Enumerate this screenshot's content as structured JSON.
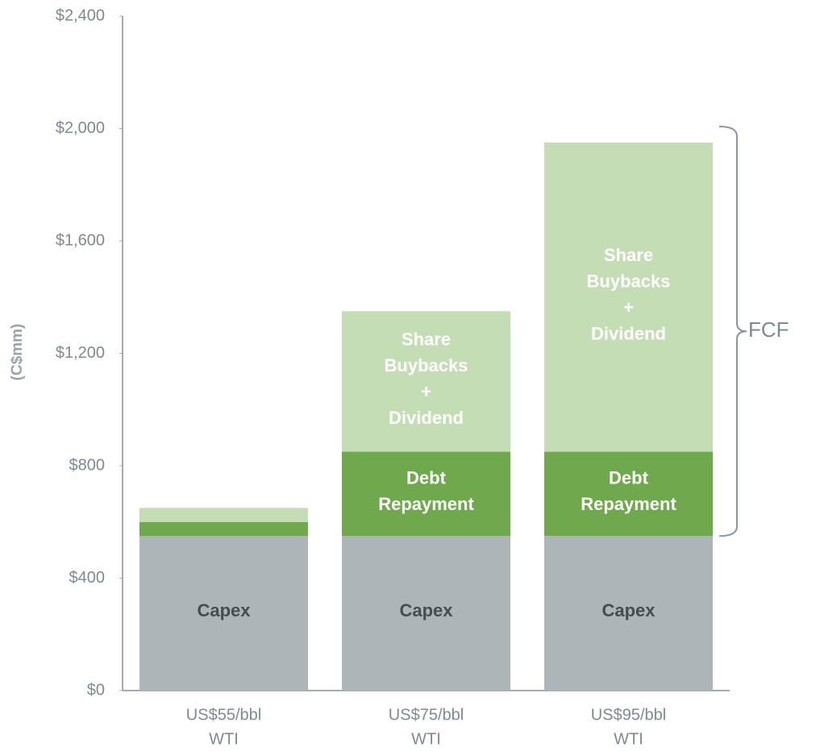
{
  "chart_data": {
    "type": "stacked_bar",
    "ylabel": "(C$mm)",
    "categories": [
      [
        "US$55/bbl",
        "WTI"
      ],
      [
        "US$75/bbl",
        "WTI"
      ],
      [
        "US$95/bbl",
        "WTI"
      ]
    ],
    "series": [
      {
        "name": "Capex",
        "color": "#adb5b8",
        "values": [
          550,
          550,
          550
        ],
        "segment_labels": [
          [
            "Capex"
          ],
          [
            "Capex"
          ],
          [
            "Capex"
          ]
        ]
      },
      {
        "name": "Debt Repayment",
        "color": "#70a84d",
        "values": [
          50,
          300,
          300
        ],
        "segment_labels": [
          null,
          [
            "Debt",
            "Repayment"
          ],
          [
            "Debt",
            "Repayment"
          ]
        ]
      },
      {
        "name": "Share Buybacks + Dividend",
        "color": "#c5ddb5",
        "values": [
          50,
          500,
          1100
        ],
        "segment_labels": [
          null,
          [
            "Share",
            "Buybacks",
            "+",
            "Dividend"
          ],
          [
            "Share",
            "Buybacks",
            "+",
            "Dividend"
          ]
        ]
      }
    ],
    "annotation": "FCF",
    "ylim": [
      0,
      2400
    ],
    "yticks": [
      {
        "value": 0,
        "label": "$0"
      },
      {
        "value": 400,
        "label": "$400"
      },
      {
        "value": 800,
        "label": "$800"
      },
      {
        "value": 1200,
        "label": "$1,200"
      },
      {
        "value": 1600,
        "label": "$1,600"
      },
      {
        "value": 2000,
        "label": "$2,000"
      },
      {
        "value": 2400,
        "label": "$2,400"
      }
    ],
    "grid": false
  }
}
